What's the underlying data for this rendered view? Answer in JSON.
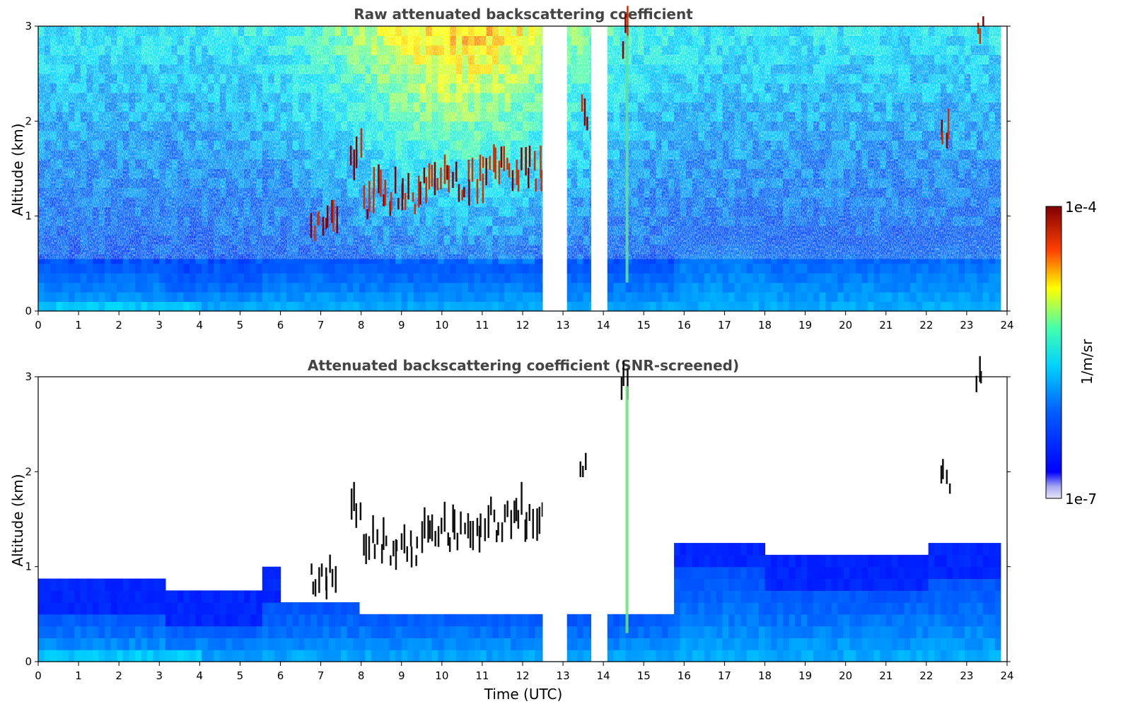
{
  "chart_data": [
    {
      "type": "heatmap",
      "title": "Raw attenuated backscattering coefficient",
      "xlabel": "",
      "ylabel": "Altitude (km)",
      "xlim": [
        0,
        24
      ],
      "ylim": [
        0,
        3
      ],
      "xticks": [
        "0",
        "1",
        "2",
        "3",
        "4",
        "5",
        "6",
        "7",
        "8",
        "9",
        "10",
        "11",
        "12",
        "13",
        "14",
        "15",
        "16",
        "17",
        "18",
        "19",
        "20",
        "21",
        "22",
        "23",
        "24"
      ],
      "yticks": [
        "0",
        "1",
        "2",
        "3"
      ],
      "data_gaps_utc": [
        [
          12.5,
          13.1
        ],
        [
          13.7,
          14.1
        ],
        [
          23.85,
          24.0
        ]
      ],
      "features": {
        "aerosol_layer_top_km": 0.6,
        "cloud_segments": [
          {
            "t_start": 6.7,
            "t_end": 7.4,
            "alt_km": 0.8
          },
          {
            "t_start": 7.7,
            "t_end": 8.0,
            "alt_km": 1.5
          },
          {
            "t_start": 8.0,
            "t_end": 9.5,
            "alt_km": 1.1
          },
          {
            "t_start": 9.5,
            "t_end": 11.0,
            "alt_km": 1.25
          },
          {
            "t_start": 11.0,
            "t_end": 12.5,
            "alt_km": 1.4
          },
          {
            "t_start": 13.4,
            "t_end": 13.6,
            "alt_km": 2.0
          },
          {
            "t_start": 14.4,
            "t_end": 14.6,
            "alt_km": 2.8
          },
          {
            "t_start": 22.3,
            "t_end": 22.6,
            "alt_km": 1.8
          },
          {
            "t_start": 23.2,
            "t_end": 23.4,
            "alt_km": 2.9
          }
        ]
      }
    },
    {
      "type": "heatmap",
      "title": "Attenuated backscattering coefficient (SNR-screened)",
      "xlabel": "Time (UTC)",
      "ylabel": "Altitude (km)",
      "xlim": [
        0,
        24
      ],
      "ylim": [
        0,
        3
      ],
      "xticks": [
        "0",
        "1",
        "2",
        "3",
        "4",
        "5",
        "6",
        "7",
        "8",
        "9",
        "10",
        "11",
        "12",
        "13",
        "14",
        "15",
        "16",
        "17",
        "18",
        "19",
        "20",
        "21",
        "22",
        "23",
        "24"
      ],
      "yticks": [
        "0",
        "1",
        "2",
        "3"
      ],
      "data_gaps_utc": [
        [
          12.5,
          13.1
        ],
        [
          13.7,
          14.1
        ],
        [
          23.85,
          24.0
        ]
      ]
    }
  ],
  "colorbar": {
    "label": "1/m/sr",
    "max_label": "1e-4",
    "min_label": "1e-7",
    "scale": "log",
    "colormap": "jet"
  }
}
